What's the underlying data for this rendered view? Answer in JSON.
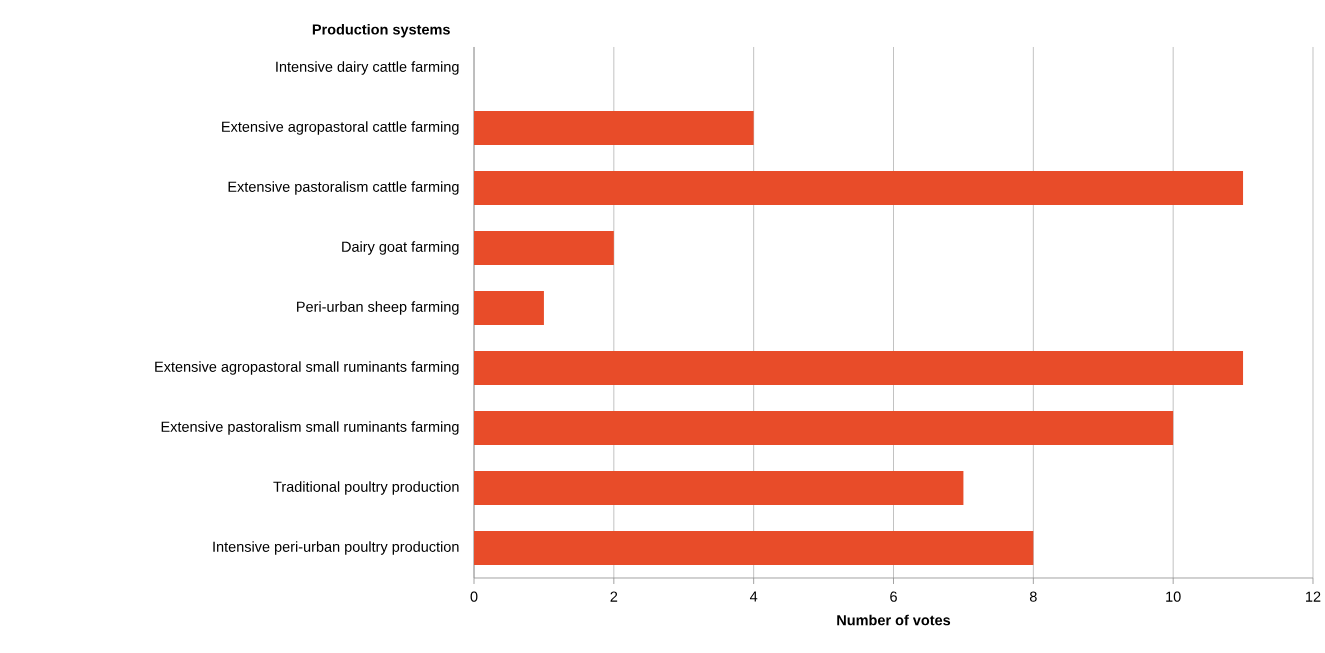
{
  "chart_data": {
    "type": "bar",
    "orientation": "horizontal",
    "ylabel": "Production systems",
    "xlabel": "Number of votes",
    "categories": [
      "Intensive dairy cattle farming",
      "Extensive agropastoral cattle farming",
      "Extensive pastoralism cattle farming",
      "Dairy goat farming",
      "Peri-urban sheep farming",
      "Extensive agropastoral small ruminants farming",
      "Extensive pastoralism small ruminants farming",
      "Traditional poultry production",
      "Intensive peri-urban poultry production"
    ],
    "values": [
      0,
      4,
      11,
      2,
      1,
      11,
      10,
      7,
      8
    ],
    "color": "#e84c29",
    "xlim": [
      0,
      12
    ],
    "xticks": [
      0,
      2,
      4,
      6,
      8,
      10,
      12
    ],
    "grid": "x"
  }
}
